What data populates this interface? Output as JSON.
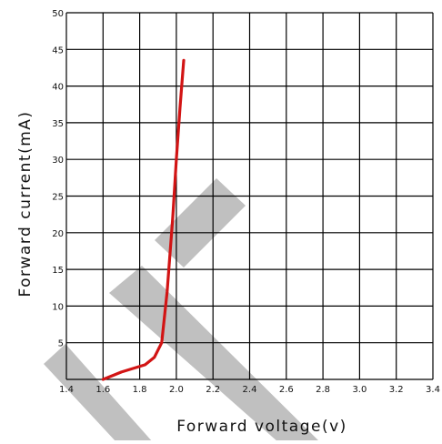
{
  "chart_data": {
    "type": "line",
    "xlabel": "Forward voltage(v)",
    "ylabel": "Forward current(mA)",
    "xlim": [
      1.4,
      3.4
    ],
    "ylim": [
      0,
      50
    ],
    "xticks": [
      "1.4",
      "1.6",
      "1.8",
      "2.0",
      "2.2",
      "2.4",
      "2.6",
      "2.8",
      "3.0",
      "3.2",
      "3.4"
    ],
    "yticks": [
      "5",
      "10",
      "15",
      "20",
      "25",
      "30",
      "35",
      "40",
      "45",
      "50"
    ],
    "grid": true,
    "series": [
      {
        "color": "#d21414",
        "x": [
          1.6,
          1.7,
          1.83,
          1.88,
          1.92,
          1.95,
          1.98,
          2.0,
          2.02,
          2.04
        ],
        "y": [
          0,
          1,
          2,
          3,
          5,
          12,
          22,
          30,
          37,
          43.5
        ]
      }
    ]
  },
  "watermark": {
    "color": "#bdbdbd"
  }
}
